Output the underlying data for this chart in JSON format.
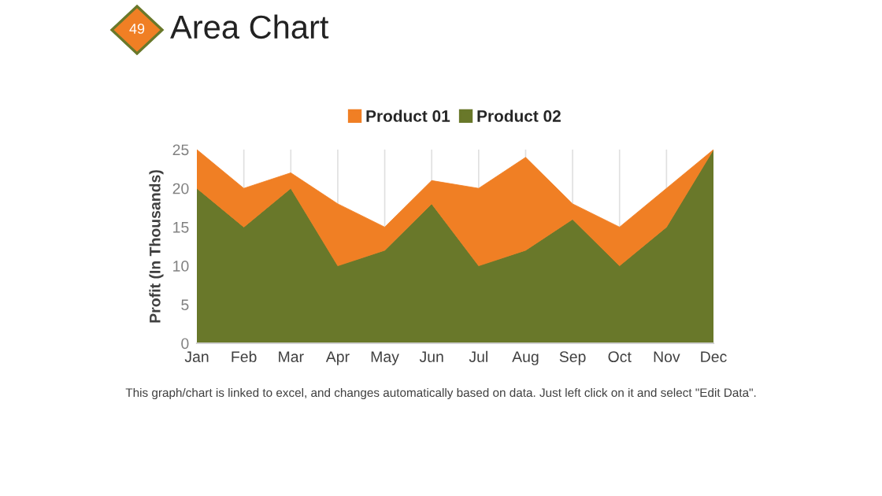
{
  "chart_data": {
    "type": "area",
    "title": "Area Chart",
    "ylabel": "Profit (In Thousands)",
    "stacked": true,
    "categories": [
      "Jan",
      "Feb",
      "Mar",
      "Apr",
      "May",
      "Jun",
      "Jul",
      "Aug",
      "Sep",
      "Oct",
      "Nov",
      "Dec"
    ],
    "series": [
      {
        "name": "Product 02",
        "color": "#69782a",
        "values": [
          20,
          15,
          20,
          10,
          12,
          18,
          10,
          12,
          16,
          10,
          15,
          25
        ]
      },
      {
        "name": "Product 01",
        "color": "#f07f24",
        "values": [
          5,
          5,
          2,
          8,
          3,
          3,
          10,
          12,
          2,
          5,
          5,
          0
        ]
      }
    ],
    "ylim": [
      0,
      25
    ],
    "yticks": [
      0,
      5,
      10,
      15,
      20,
      25
    ],
    "grid": "x",
    "legend": "top",
    "annotations": [
      "49",
      "This graph/chart is linked to excel, and changes automatically based on data. Just left click on it and select \"Edit Data\"."
    ]
  }
}
